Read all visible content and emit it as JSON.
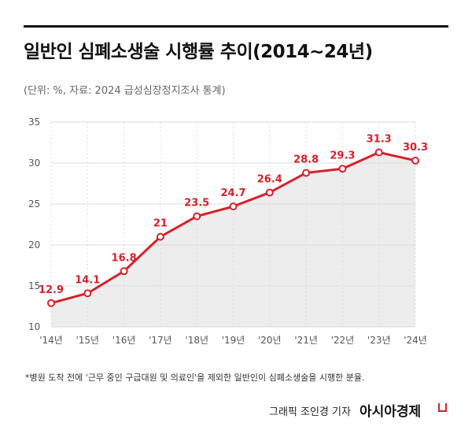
{
  "header": {
    "title": "일반인 심폐소생술 시행률 추이(2014~24년)",
    "unit_source": "(단위: %, 자료: 2024 급성심장정지조사 통계)"
  },
  "footer": {
    "footnote": "*병원 도착 전에 '근무 중인 구급대원 및 의료인'을 제외한 일반인이 심폐소생술을 시행한 분율.",
    "credit": "그래픽  조인경 기자",
    "brand": "아시아경제"
  },
  "colors": {
    "accent": "#d9202b",
    "area": "#ededed",
    "grid": "#dcdcdc",
    "point_fill": "#ffffff"
  },
  "chart_data": {
    "type": "line",
    "title": "일반인 심폐소생술 시행률 추이(2014~24년)",
    "xlabel": "",
    "ylabel": "",
    "categories": [
      "'14년",
      "'15년",
      "'16년",
      "'17년",
      "'18년",
      "'19년",
      "'20년",
      "'21년",
      "'22년",
      "'23년",
      "'24년"
    ],
    "series": [
      {
        "values": [
          12.9,
          14.1,
          16.8,
          21,
          23.5,
          24.7,
          26.4,
          28.8,
          29.3,
          31.3,
          30.3
        ],
        "labels": [
          "12.9",
          "14.1",
          "16.8",
          "21",
          "23.5",
          "24.7",
          "26.4",
          "28.8",
          "29.3",
          "31.3",
          "30.3"
        ]
      }
    ],
    "ylim": [
      10,
      35
    ],
    "yticks": [
      "10",
      "15",
      "20",
      "25",
      "30",
      "35"
    ],
    "grid": true,
    "area_fill": true,
    "legend": "none"
  }
}
